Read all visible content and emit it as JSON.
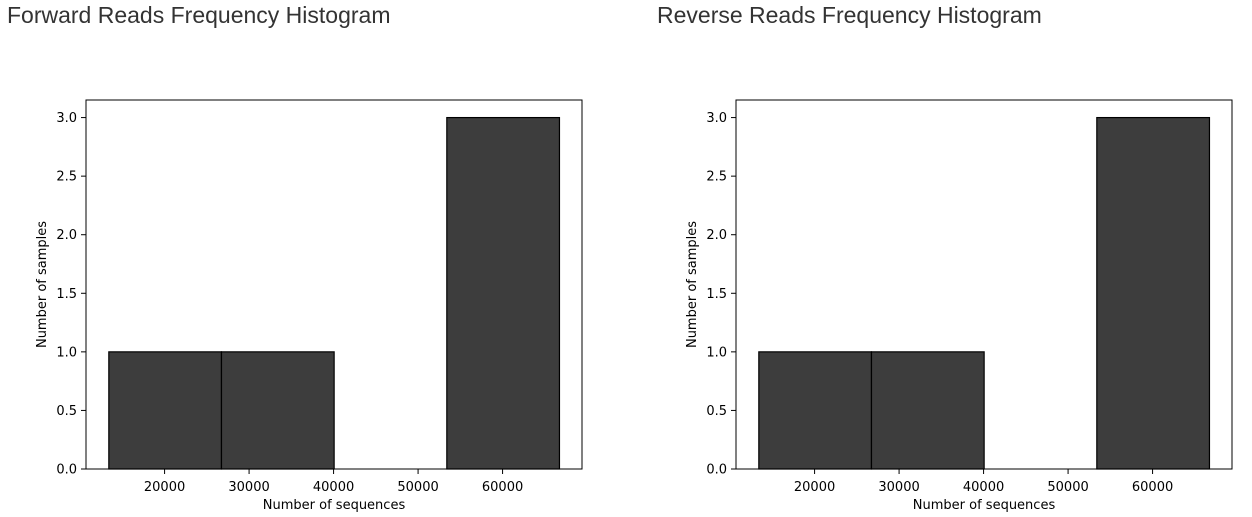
{
  "chart_data": [
    {
      "type": "bar",
      "title": "Forward Reads Frequency Histogram",
      "xlabel": "Number of sequences",
      "ylabel": "Number of samples",
      "bins": [
        {
          "start": 13400,
          "end": 26733,
          "count": 1
        },
        {
          "start": 26733,
          "end": 40067,
          "count": 1
        },
        {
          "start": 40067,
          "end": 53400,
          "count": 0
        },
        {
          "start": 53400,
          "end": 66733,
          "count": 3
        }
      ],
      "xlim": [
        10700,
        69400
      ],
      "ylim": [
        0,
        3.15
      ],
      "xticks": [
        20000,
        30000,
        40000,
        50000,
        60000
      ],
      "yticks": [
        "0.0",
        "0.5",
        "1.0",
        "1.5",
        "2.0",
        "2.5",
        "3.0"
      ],
      "grid": false,
      "bar_color": "#3d3d3d",
      "edge_color": "#000000"
    },
    {
      "type": "bar",
      "title": "Reverse Reads Frequency Histogram",
      "xlabel": "Number of sequences",
      "ylabel": "Number of samples",
      "bins": [
        {
          "start": 13400,
          "end": 26733,
          "count": 1
        },
        {
          "start": 26733,
          "end": 40067,
          "count": 1
        },
        {
          "start": 40067,
          "end": 53400,
          "count": 0
        },
        {
          "start": 53400,
          "end": 66733,
          "count": 3
        }
      ],
      "xlim": [
        10700,
        69400
      ],
      "ylim": [
        0,
        3.15
      ],
      "xticks": [
        20000,
        30000,
        40000,
        50000,
        60000
      ],
      "yticks": [
        "0.0",
        "0.5",
        "1.0",
        "1.5",
        "2.0",
        "2.5",
        "3.0"
      ],
      "grid": false,
      "bar_color": "#3d3d3d",
      "edge_color": "#000000"
    }
  ]
}
